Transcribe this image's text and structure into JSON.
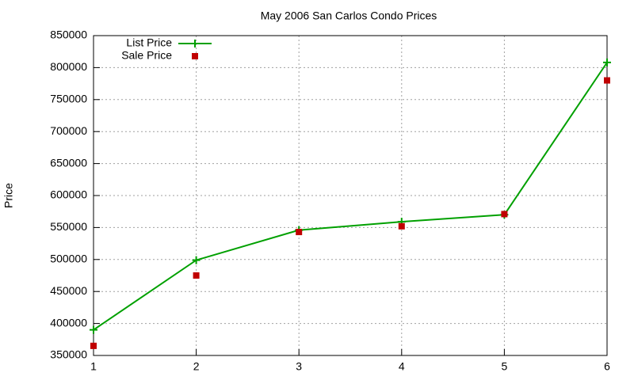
{
  "chart_data": {
    "type": "line",
    "title": "May 2006 San Carlos Condo Prices",
    "y_label": "Price",
    "x": [
      1,
      2,
      3,
      4,
      5,
      6
    ],
    "xlim": [
      1,
      6
    ],
    "xticks": [
      1,
      2,
      3,
      4,
      5,
      6
    ],
    "ylim": [
      350000,
      850000
    ],
    "yticks": [
      350000,
      400000,
      450000,
      500000,
      550000,
      600000,
      650000,
      700000,
      750000,
      800000,
      850000
    ],
    "grid": true,
    "legend": "top-left",
    "series": [
      {
        "name": "List Price",
        "color": "#00a000",
        "line": true,
        "marker": "plus",
        "values": [
          390000,
          499000,
          546000,
          559000,
          570000,
          808000
        ]
      },
      {
        "name": "Sale Price",
        "color": "#c00000",
        "line": false,
        "marker": "square",
        "values": [
          365000,
          475000,
          543000,
          552000,
          571000,
          780000
        ]
      }
    ]
  }
}
